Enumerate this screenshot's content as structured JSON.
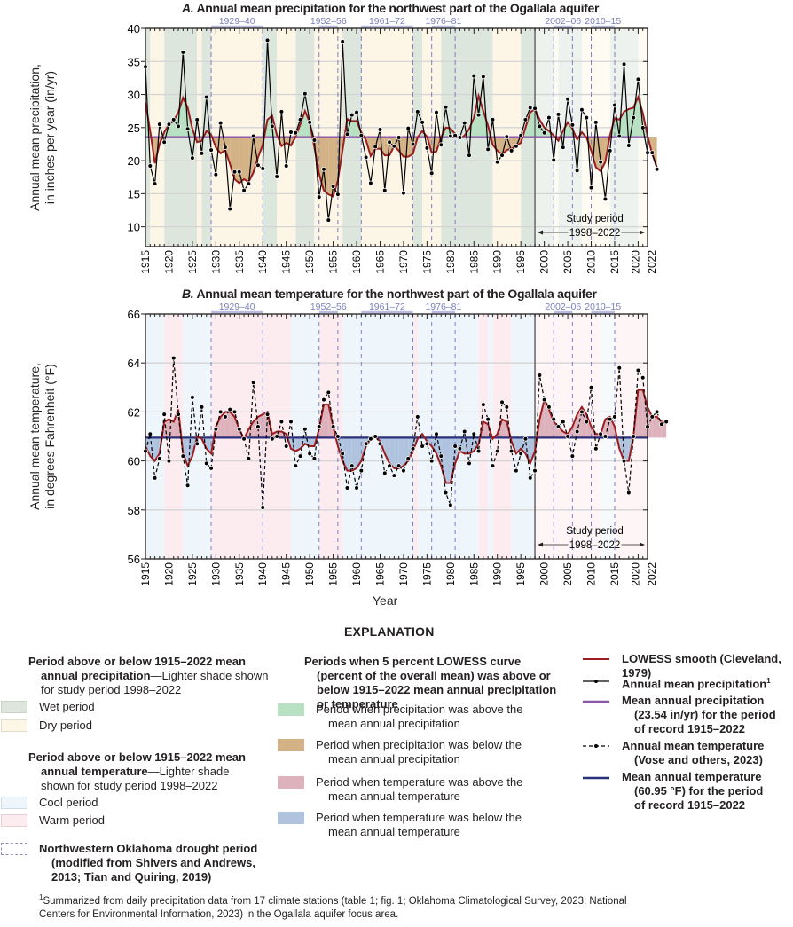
{
  "chart_data": [
    {
      "type": "line",
      "id": "A",
      "title_prefix": "A.",
      "title": "Annual mean precipitation for the northwest part of the Ogallala aquifer",
      "xlabel": "",
      "ylabel": [
        "Annual mean precipitation,",
        "in inches per year (in/yr)"
      ],
      "xlim": [
        1915,
        2022
      ],
      "ylim": [
        7,
        40
      ],
      "yticks": [
        10,
        15,
        20,
        25,
        30,
        35,
        40
      ],
      "xticks": [
        1915,
        1920,
        1925,
        1930,
        1935,
        1940,
        1945,
        1950,
        1955,
        1960,
        1965,
        1970,
        1975,
        1980,
        1985,
        1990,
        1995,
        2000,
        2005,
        2010,
        2015,
        2020,
        2022
      ],
      "grid": true,
      "mean": 23.54,
      "series": [
        {
          "name": "Annual mean precipitation",
          "style": "solid-with-dots",
          "color": "#000000",
          "x_start": 1915,
          "values": [
            34.2,
            19.2,
            16.5,
            25.5,
            22.8,
            25.5,
            26.2,
            25.2,
            36.4,
            24.8,
            20.4,
            26.2,
            21.1,
            29.6,
            21.6,
            17.9,
            25.7,
            22.0,
            12.7,
            18.3,
            18.3,
            15.5,
            16.5,
            23.7,
            19.3,
            18.8,
            38.2,
            25.2,
            17.6,
            27.4,
            19.2,
            24.3,
            24.2,
            26.2,
            30.1,
            25.8,
            23.1,
            14.5,
            18.7,
            11.0,
            16.1,
            14.9,
            38.0,
            24.0,
            26.9,
            27.3,
            23.8,
            20.5,
            16.6,
            22.1,
            24.7,
            15.5,
            22.8,
            22.2,
            23.5,
            15.1,
            24.9,
            22.5,
            27.4,
            25.8,
            21.9,
            18.1,
            27.3,
            22.4,
            28.1,
            23.7,
            23.8,
            23.5,
            25.7,
            20.8,
            32.8,
            26.9,
            32.7,
            21.7,
            26.2,
            19.8,
            20.8,
            23.6,
            21.5,
            22.2,
            23.8,
            26.2,
            28.0,
            27.9,
            25.2,
            24.2,
            26.5,
            20.1,
            27.0,
            22.0,
            29.3,
            25.4,
            18.5,
            27.7,
            26.5,
            15.9,
            25.8,
            19.8,
            14.2,
            21.5,
            28.4,
            23.7,
            34.6,
            22.3,
            26.5,
            32.3,
            25.0,
            21.2,
            21.2,
            18.7
          ]
        },
        {
          "name": "LOWESS smooth (Cleveland, 1979)",
          "style": "solid",
          "color": "#9b1c1f",
          "x_start": 1915,
          "values": [
            28.8,
            24.5,
            19.6,
            22.5,
            24.3,
            25.5,
            26.0,
            27.3,
            29.5,
            28.0,
            24.8,
            22.8,
            23.0,
            24.5,
            23.9,
            22.0,
            21.1,
            21.6,
            19.5,
            17.2,
            16.6,
            17.2,
            16.8,
            18.2,
            20.5,
            22.4,
            26.2,
            26.8,
            23.9,
            22.2,
            22.7,
            22.3,
            23.6,
            25.5,
            27.5,
            25.8,
            22.0,
            18.0,
            15.5,
            14.9,
            14.6,
            17.0,
            21.6,
            26.3,
            26.0,
            26.0,
            24.3,
            23.1,
            20.7,
            21.8,
            21.8,
            20.8,
            20.8,
            22.2,
            21.5,
            20.6,
            20.6,
            21.0,
            23.5,
            24.5,
            23.6,
            21.2,
            21.4,
            23.5,
            25.0,
            24.9,
            24.0,
            23.3,
            23.8,
            24.8,
            26.5,
            29.8,
            27.5,
            25.3,
            22.4,
            21.5,
            20.9,
            21.6,
            21.8,
            22.2,
            22.7,
            25.0,
            27.3,
            27.8,
            26.2,
            25.0,
            24.5,
            23.8,
            23.0,
            24.5,
            25.8,
            24.8,
            23.2,
            24.3,
            23.5,
            21.5,
            19.0,
            18.4,
            19.8,
            23.8,
            26.4,
            26.2,
            27.4,
            27.8,
            28.0,
            29.6,
            27.2,
            23.7,
            21.0,
            19.0
          ]
        },
        {
          "name": "Mean annual precipitation (23.54 in/yr) for the period of record 1915–2022",
          "style": "solid",
          "color": "#8a55a8",
          "value": 23.54
        }
      ],
      "drought_periods": [
        "1929–40",
        "1952–56",
        "1961–72",
        "1976–81",
        "2002–06",
        "2010–15"
      ],
      "drought_spans": [
        [
          1929,
          1940
        ],
        [
          1952,
          1956
        ],
        [
          1961,
          1972
        ],
        [
          1976,
          1981
        ],
        [
          2002,
          2006
        ],
        [
          2010,
          2015
        ]
      ],
      "wet_periods": [
        [
          1915,
          1916
        ],
        [
          1919,
          1926
        ],
        [
          1927,
          1929
        ],
        [
          1940,
          1943
        ],
        [
          1947,
          1951
        ],
        [
          1957,
          1961
        ],
        [
          1972,
          1974
        ],
        [
          1978,
          1989
        ],
        [
          1995,
          1998
        ],
        [
          1998,
          2002
        ],
        [
          2003,
          2008
        ],
        [
          2014,
          2020
        ]
      ],
      "dry_periods": [
        [
          1916,
          1919
        ],
        [
          1926,
          1927
        ],
        [
          1929,
          1940
        ],
        [
          1943,
          1947
        ],
        [
          1951,
          1957
        ],
        [
          1961,
          1972
        ],
        [
          1974,
          1978
        ],
        [
          1989,
          1995
        ],
        [
          2002,
          2003
        ],
        [
          2008,
          2014
        ],
        [
          2020,
          2022
        ]
      ],
      "study_period": {
        "label": "Study period",
        "range": "1998–2022",
        "start": 1998,
        "end": 2022
      }
    },
    {
      "type": "line",
      "id": "B",
      "title_prefix": "B.",
      "title": "Annual mean temperature for the northwest part of the Ogallala aquifer",
      "xlabel": "Year",
      "ylabel": [
        "Annual mean temperature,",
        "in degrees Fahrenheit (°F)"
      ],
      "xlim": [
        1915,
        2022
      ],
      "ylim": [
        56,
        66
      ],
      "yticks": [
        56,
        58,
        60,
        62,
        64,
        66
      ],
      "xticks": [
        1915,
        1920,
        1925,
        1930,
        1935,
        1940,
        1945,
        1950,
        1955,
        1960,
        1965,
        1970,
        1975,
        1980,
        1985,
        1990,
        1995,
        2000,
        2005,
        2010,
        2015,
        2020,
        2022
      ],
      "grid": true,
      "mean": 60.95,
      "series": [
        {
          "name": "Annual mean temperature (Vose and others, 2023)",
          "style": "dashed-with-dots",
          "color": "#000000",
          "x_start": 1915,
          "values": [
            60.4,
            61.1,
            59.3,
            60.1,
            61.9,
            60.0,
            64.2,
            61.9,
            60.2,
            59.0,
            62.6,
            60.7,
            62.2,
            59.9,
            59.7,
            61.3,
            62.0,
            61.8,
            62.1,
            62.0,
            61.3,
            60.9,
            60.1,
            63.2,
            61.4,
            58.1,
            61.9,
            60.9,
            61.0,
            61.6,
            60.6,
            61.6,
            59.8,
            60.2,
            61.3,
            60.3,
            60.1,
            61.4,
            62.5,
            62.8,
            61.4,
            61.0,
            60.3,
            58.9,
            59.8,
            58.9,
            59.6,
            60.7,
            60.9,
            61.0,
            60.7,
            59.5,
            59.8,
            59.4,
            59.8,
            59.6,
            60.1,
            60.5,
            61.8,
            60.6,
            60.7,
            60.0,
            61.1,
            60.2,
            58.7,
            58.2,
            60.6,
            60.5,
            61.2,
            59.9,
            61.1,
            60.4,
            62.3,
            61.7,
            59.8,
            60.4,
            62.4,
            62.2,
            60.4,
            59.6,
            60.3,
            60.9,
            59.3,
            59.6,
            63.5,
            62.5,
            62.2,
            61.7,
            61.4,
            61.6,
            61.0,
            60.2,
            61.2,
            62.0,
            61.6,
            63.0,
            60.5,
            61.1,
            61.0,
            61.7,
            61.8,
            63.8,
            60.0,
            58.7,
            61.0,
            63.7,
            63.4,
            61.4,
            61.8,
            62.0,
            61.5,
            61.6
          ]
        },
        {
          "name": "LOWESS smooth (Cleveland, 1979)",
          "style": "solid",
          "color": "#9b1c1f",
          "x_start": 1915,
          "values": [
            60.6,
            60.2,
            60.0,
            60.3,
            61.6,
            61.7,
            61.6,
            62.1,
            60.3,
            59.8,
            60.2,
            61.0,
            60.9,
            60.5,
            60.3,
            61.4,
            61.8,
            62.0,
            62.0,
            61.8,
            61.3,
            60.9,
            61.3,
            61.6,
            61.8,
            61.9,
            62.0,
            61.1,
            61.2,
            61.2,
            61.1,
            60.5,
            60.4,
            60.5,
            60.7,
            60.6,
            60.6,
            61.3,
            62.3,
            62.3,
            61.4,
            60.6,
            60.0,
            59.6,
            59.6,
            59.7,
            60.0,
            60.6,
            60.9,
            61.0,
            60.8,
            60.3,
            59.9,
            59.7,
            59.7,
            59.8,
            60.0,
            60.4,
            60.9,
            61.1,
            60.8,
            60.6,
            60.3,
            59.8,
            59.1,
            59.1,
            59.9,
            60.4,
            60.3,
            60.3,
            60.4,
            60.7,
            61.6,
            61.5,
            60.9,
            61.1,
            61.7,
            61.6,
            60.8,
            60.3,
            60.5,
            60.3,
            59.9,
            60.4,
            61.7,
            62.5,
            62.1,
            61.6,
            61.4,
            61.2,
            61.1,
            61.4,
            61.9,
            62.2,
            61.9,
            61.4,
            61.1,
            61.1,
            61.7,
            61.8,
            61.4,
            60.5,
            60.0,
            60.0,
            61.0,
            62.9,
            62.9,
            62.2,
            61.8,
            61.8,
            61.6,
            61.6
          ]
        },
        {
          "name": "Mean annual temperature (60.95 °F) for the period of record 1915–2022",
          "style": "solid",
          "color": "#2c2f7c",
          "value": 60.95
        }
      ],
      "drought_periods": [
        "1929–40",
        "1952–56",
        "1961–72",
        "1976–81",
        "2002–06",
        "2010–15"
      ],
      "drought_spans": [
        [
          1929,
          1940
        ],
        [
          1952,
          1956
        ],
        [
          1961,
          1972
        ],
        [
          1976,
          1981
        ],
        [
          2002,
          2006
        ],
        [
          2010,
          2015
        ]
      ],
      "cool_periods": [
        [
          1915,
          1919
        ],
        [
          1923,
          1929
        ],
        [
          1946,
          1952
        ],
        [
          1957,
          1972
        ],
        [
          1973,
          1986
        ],
        [
          1988,
          1989
        ],
        [
          1993,
          1998
        ],
        [
          2012,
          2015
        ]
      ],
      "warm_periods": [
        [
          1919,
          1923
        ],
        [
          1929,
          1946
        ],
        [
          1952,
          1957
        ],
        [
          1972,
          1973
        ],
        [
          1986,
          1988
        ],
        [
          1989,
          1993
        ],
        [
          1998,
          2012
        ],
        [
          2015,
          2022
        ]
      ],
      "study_period": {
        "label": "Study period",
        "range": "1998–2022",
        "start": 1998,
        "end": 2022
      }
    }
  ],
  "colors": {
    "wet": "#dce6dd",
    "wet_light": "#edf2ee",
    "dry": "#fdf6e7",
    "dry_light": "#fefbf3",
    "cool": "#eef6fc",
    "cool_light": "#f6fafd",
    "warm": "#fcecef",
    "warm_light": "#fdf5f6",
    "above_precip": "#b8e0c2",
    "below_precip": "#d3b286",
    "above_temp": "#deb2bc",
    "below_temp": "#afc3df",
    "lowess": "#9b1c1f",
    "mean_precip": "#8a55a8",
    "mean_temp": "#2c2f7c",
    "drought": "#7c80bf",
    "grid": "#d4d4d4"
  },
  "explanation": {
    "heading": "EXPLANATION",
    "col1": {
      "precip_heading_bold": "Period above or below 1915–2022 mean annual precipitation",
      "precip_heading_rest": "—Lighter shade shown for study period 1998–2022",
      "wet_label": "Wet period",
      "dry_label": "Dry period",
      "temp_heading_bold": "Period above or below 1915–2022 mean annual temperature",
      "temp_heading_rest": "—Lighter shade shown for study period 1998–2022",
      "cool_label": "Cool period",
      "warm_label": "Warm period",
      "drought_label": "Northwestern Oklahoma drought period (modified from Shivers and Andrews, 2013; Tian and Quiring, 2019)"
    },
    "col2": {
      "heading": "Periods when 5 percent LOWESS curve (percent of the overall mean) was above or below 1915–2022 mean annual precipitation or temperature",
      "items": [
        "Period when precipitation was above the mean annual precipitation",
        "Period when precipitation was below the mean annual precipitation",
        "Period when temperature was above the mean annual temperature",
        "Period when temperature was below the mean annual temperature"
      ]
    },
    "col3": {
      "lowess": "LOWESS smooth (Cleveland, 1979)",
      "precip": "Annual mean precipitation",
      "precip_sup": "1",
      "mean_precip": "Mean annual precipitation (23.54 in/yr) for the period of record 1915–2022",
      "temp": "Annual mean temperature (Vose and others, 2023)",
      "mean_temp": "Mean annual temperature (60.95 °F) for the period of record 1915–2022"
    },
    "footnote_sup": "1",
    "footnote": "Summarized from daily precipitation data from 17 climate stations (table 1; fig. 1; Oklahoma Climatological Survey, 2023; National Centers for Environmental Information, 2023) in the Ogallala aquifer focus area."
  }
}
